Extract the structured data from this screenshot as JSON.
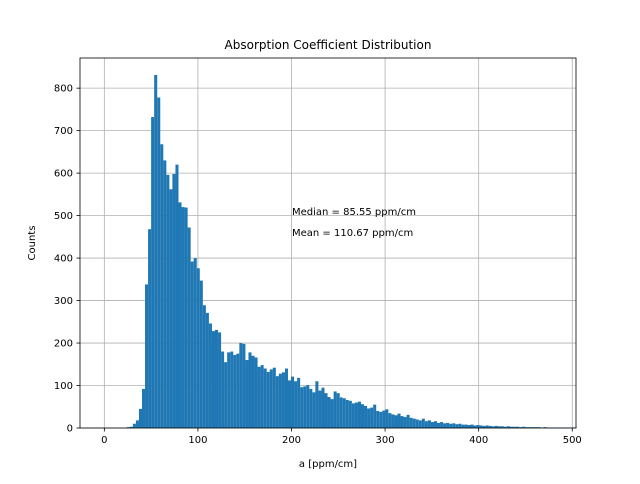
{
  "chart_data": {
    "type": "bar",
    "title": "Absorption Coefficient Distribution",
    "xlabel": "a [ppm/cm]",
    "ylabel": "Counts",
    "xlim": [
      -26,
      504
    ],
    "ylim": [
      0,
      871
    ],
    "x_ticks": [
      0,
      100,
      200,
      300,
      400,
      500
    ],
    "y_ticks": [
      0,
      100,
      200,
      300,
      400,
      500,
      600,
      700,
      800
    ],
    "x_tick_labels": [
      "0",
      "100",
      "200",
      "300",
      "400",
      "500"
    ],
    "y_tick_labels": [
      "0",
      "100",
      "200",
      "300",
      "400",
      "500",
      "600",
      "700",
      "800"
    ],
    "grid": true,
    "bar_color": "#1f77b4",
    "bin_width": 3.25,
    "bin_start": 24.0,
    "values": [
      2,
      3,
      10,
      18,
      45,
      92,
      338,
      468,
      732,
      831,
      778,
      668,
      630,
      596,
      562,
      598,
      620,
      531,
      520,
      519,
      472,
      392,
      400,
      376,
      347,
      289,
      271,
      246,
      228,
      231,
      225,
      180,
      155,
      178,
      180,
      172,
      175,
      200,
      198,
      160,
      178,
      170,
      166,
      144,
      148,
      140,
      132,
      138,
      142,
      122,
      128,
      131,
      140,
      112,
      121,
      110,
      118,
      96,
      98,
      101,
      92,
      84,
      110,
      88,
      95,
      82,
      73,
      68,
      86,
      82,
      72,
      70,
      66,
      64,
      58,
      60,
      62,
      56,
      52,
      46,
      48,
      55,
      40,
      38,
      41,
      44,
      35,
      32,
      30,
      34,
      28,
      26,
      31,
      24,
      22,
      20,
      18,
      22,
      16,
      18,
      14,
      16,
      12,
      14,
      11,
      12,
      10,
      11,
      9,
      10,
      8,
      8,
      7,
      8,
      6,
      7,
      6,
      5,
      6,
      5,
      4,
      5,
      4,
      4,
      3,
      4,
      3,
      3,
      3,
      2,
      3,
      2,
      2,
      2,
      2,
      2,
      1,
      2,
      1,
      1,
      1,
      1,
      1,
      1,
      1,
      1,
      1,
      1
    ],
    "annotations": [
      "Median = 85.55 ppm/cm",
      "Mean = 110.67 ppm/cm"
    ]
  }
}
